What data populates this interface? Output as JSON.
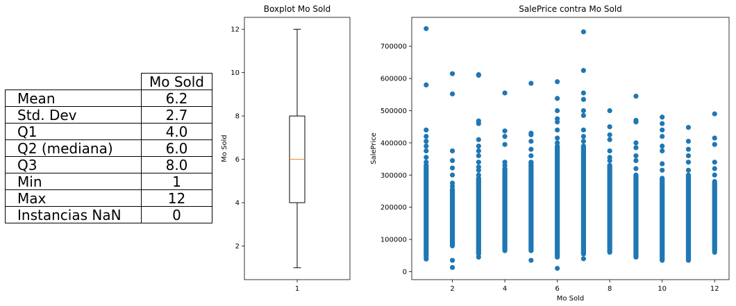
{
  "table": {
    "column_header": "Mo Sold",
    "rows": [
      {
        "label": "Mean",
        "value": "6.2"
      },
      {
        "label": "Std. Dev",
        "value": "2.7"
      },
      {
        "label": "Q1",
        "value": "4.0"
      },
      {
        "label": "Q2 (mediana)",
        "value": "6.0"
      },
      {
        "label": "Q3",
        "value": "8.0"
      },
      {
        "label": "Min",
        "value": "1"
      },
      {
        "label": "Max",
        "value": "12"
      },
      {
        "label": "Instancias NaN",
        "value": "0"
      }
    ]
  },
  "chart_data": [
    {
      "type": "boxplot",
      "title": "Boxplot Mo Sold",
      "xlabel": "",
      "ylabel": "Mo Sold",
      "categories": [
        "1"
      ],
      "stats": {
        "min": 1,
        "q1": 4,
        "median": 6,
        "q3": 8,
        "max": 12
      },
      "ylim": [
        0.45,
        12.55
      ],
      "yticks": [
        2,
        4,
        6,
        8,
        10,
        12
      ],
      "colors": {
        "box": "#000000",
        "median": "#ff7f0e"
      }
    },
    {
      "type": "scatter",
      "title": "SalePrice contra Mo Sold",
      "xlabel": "Mo Sold",
      "ylabel": "SalePrice",
      "xlim": [
        0.45,
        12.55
      ],
      "ylim": [
        -25000,
        790000
      ],
      "xticks": [
        2,
        4,
        6,
        8,
        10,
        12
      ],
      "yticks": [
        0,
        100000,
        200000,
        300000,
        400000,
        500000,
        600000,
        700000
      ],
      "color": "#1f77b4",
      "months": [
        {
          "x": 1,
          "band": [
            50000,
            330000
          ],
          "points": [
            39000,
            45000,
            60000,
            340000,
            355000,
            375000,
            390000,
            405000,
            420000,
            440000,
            580000,
            755000
          ]
        },
        {
          "x": 2,
          "band": [
            80000,
            255000
          ],
          "points": [
            12789,
            35000,
            265000,
            275000,
            300000,
            322000,
            345000,
            375000,
            552000,
            615000
          ]
        },
        {
          "x": 3,
          "band": [
            55000,
            290000
          ],
          "points": [
            45000,
            300000,
            315000,
            325000,
            340000,
            360000,
            375000,
            390000,
            410000,
            460000,
            468000,
            610000,
            612000
          ]
        },
        {
          "x": 4,
          "band": [
            65000,
            320000
          ],
          "points": [
            330000,
            340000,
            395000,
            420000,
            437000,
            555000
          ]
        },
        {
          "x": 5,
          "band": [
            65000,
            340000
          ],
          "points": [
            35000,
            360000,
            380000,
            405000,
            425000,
            430000,
            585000
          ]
        },
        {
          "x": 6,
          "band": [
            45000,
            390000
          ],
          "points": [
            10000,
            400000,
            415000,
            440000,
            465000,
            475000,
            500000,
            538000,
            590000
          ]
        },
        {
          "x": 7,
          "band": [
            55000,
            390000
          ],
          "points": [
            40000,
            405000,
            420000,
            440000,
            485000,
            500000,
            535000,
            555000,
            625000,
            745000
          ]
        },
        {
          "x": 8,
          "band": [
            60000,
            330000
          ],
          "points": [
            345000,
            355000,
            375000,
            410000,
            425000,
            450000,
            500000
          ]
        },
        {
          "x": 9,
          "band": [
            45000,
            300000
          ],
          "points": [
            320000,
            345000,
            360000,
            385000,
            400000,
            465000,
            470000,
            545000
          ]
        },
        {
          "x": 10,
          "band": [
            35000,
            290000
          ],
          "points": [
            315000,
            335000,
            375000,
            390000,
            420000,
            440000,
            460000,
            480000
          ]
        },
        {
          "x": 11,
          "band": [
            35000,
            300000
          ],
          "points": [
            315000,
            340000,
            360000,
            380000,
            405000,
            448000
          ]
        },
        {
          "x": 12,
          "band": [
            65000,
            280000
          ],
          "points": [
            60000,
            300000,
            320000,
            340000,
            395000,
            415000,
            490000
          ]
        }
      ]
    }
  ]
}
